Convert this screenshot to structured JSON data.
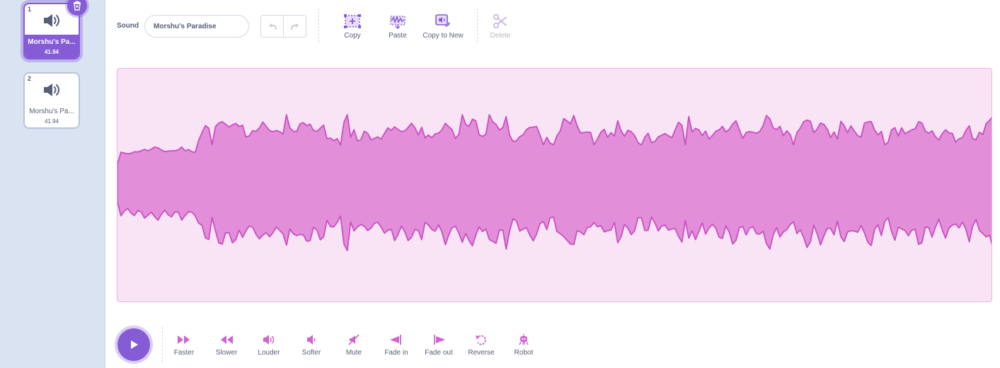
{
  "sounds": [
    {
      "number": "1",
      "name": "Morshu's Pa...",
      "duration": "41.94",
      "selected": true
    },
    {
      "number": "2",
      "name": "Morshu's Pa...",
      "duration": "41.94",
      "selected": false
    }
  ],
  "editor": {
    "sound_label": "Sound",
    "sound_name": "Morshu's Paradise"
  },
  "toolbar": {
    "copy": "Copy",
    "paste": "Paste",
    "copy_to_new": "Copy to New",
    "delete": "Delete"
  },
  "effects": {
    "faster": "Faster",
    "slower": "Slower",
    "louder": "Louder",
    "softer": "Softer",
    "mute": "Mute",
    "fade_in": "Fade in",
    "fade_out": "Fade out",
    "reverse": "Reverse",
    "robot": "Robot"
  },
  "colors": {
    "accent": "#855cd6",
    "wave_fill": "#e28ed8",
    "wave_stroke": "#c94fc2",
    "wave_bg": "#f8e4f5",
    "sidebar_bg": "#d9e3f2"
  },
  "icons": {
    "sound_tile": "speaker-icon",
    "delete_badge": "trash-icon",
    "undo": "undo-icon",
    "redo": "redo-icon",
    "play": "play-icon"
  }
}
